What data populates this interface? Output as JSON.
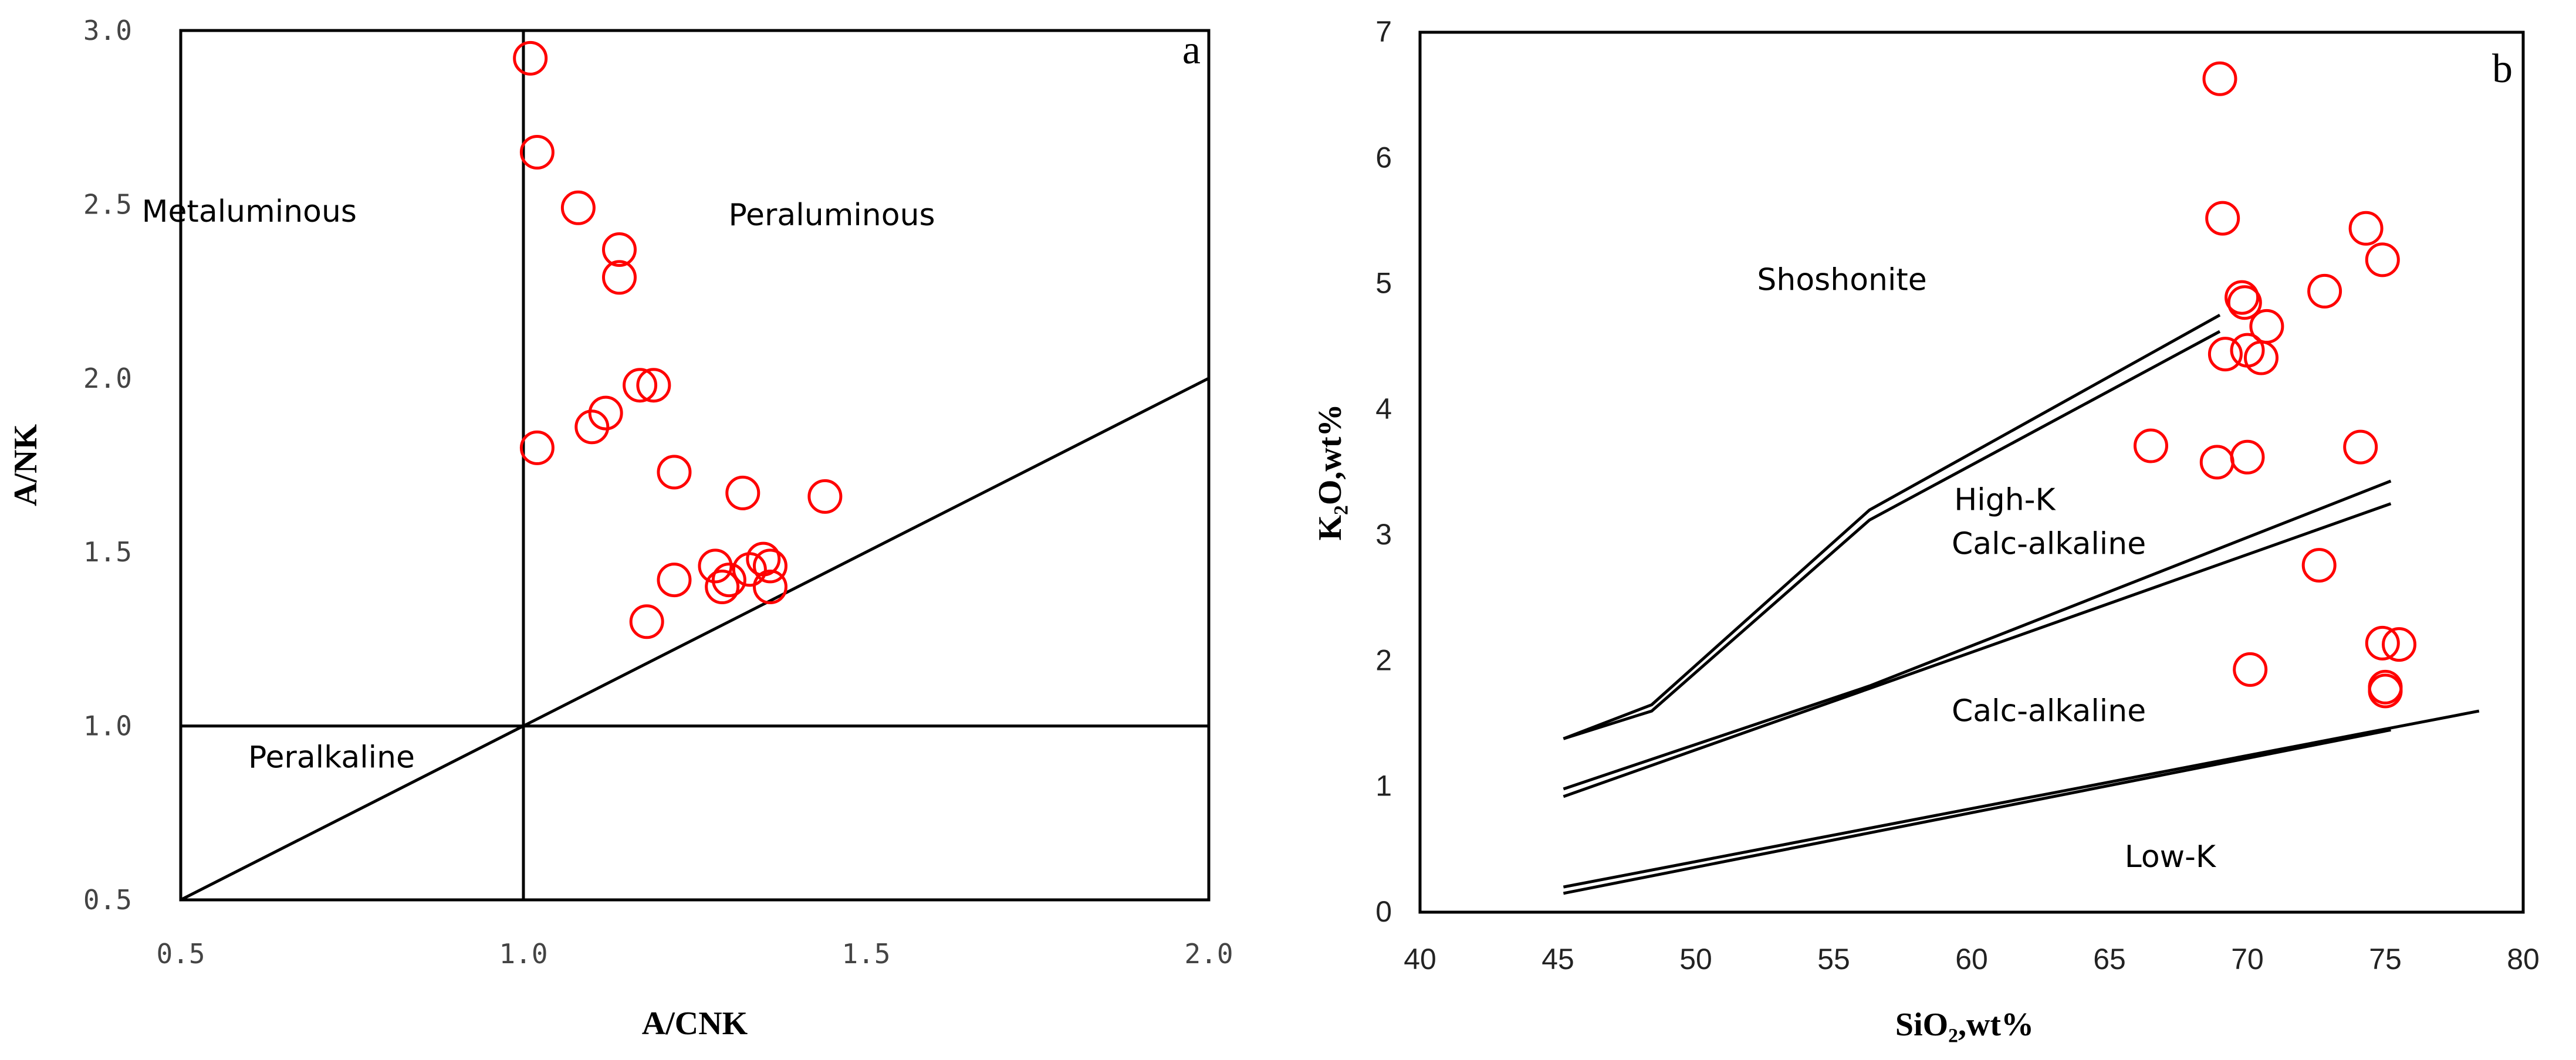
{
  "chart_data": [
    {
      "type": "scatter",
      "panel_label": "a",
      "xlabel": "A/CNK",
      "ylabel": "A/NK",
      "xlim": [
        0.5,
        2.0
      ],
      "ylim": [
        0.5,
        3.0
      ],
      "x_ticks": [
        "0.5",
        "1.0",
        "1.5",
        "2.0"
      ],
      "y_ticks": [
        "0.5",
        "1.0",
        "1.5",
        "2.0",
        "2.5",
        "3.0"
      ],
      "marker": {
        "shape": "open-circle",
        "color": "#ff0000"
      },
      "regions": [
        {
          "label": "Metaluminous",
          "x": 0.6,
          "y": 2.45
        },
        {
          "label": "Peraluminous",
          "x": 1.45,
          "y": 2.44
        },
        {
          "label": "Peralkaline",
          "x": 0.72,
          "y": 0.88
        }
      ],
      "reference_lines": [
        {
          "name": "A/CNK=1",
          "x": [
            1.0,
            1.0
          ],
          "y": [
            0.5,
            3.0
          ]
        },
        {
          "name": "A/NK=1",
          "x": [
            0.5,
            2.0
          ],
          "y": [
            1.0,
            1.0
          ]
        },
        {
          "name": "A/NK=A/CNK",
          "x": [
            0.5,
            2.0
          ],
          "y": [
            0.5,
            2.0
          ]
        }
      ],
      "points": [
        {
          "x": 1.01,
          "y": 2.92
        },
        {
          "x": 1.02,
          "y": 2.65
        },
        {
          "x": 1.08,
          "y": 2.49
        },
        {
          "x": 1.14,
          "y": 2.37
        },
        {
          "x": 1.14,
          "y": 2.29
        },
        {
          "x": 1.17,
          "y": 1.98
        },
        {
          "x": 1.19,
          "y": 1.98
        },
        {
          "x": 1.12,
          "y": 1.9
        },
        {
          "x": 1.1,
          "y": 1.86
        },
        {
          "x": 1.02,
          "y": 1.8
        },
        {
          "x": 1.22,
          "y": 1.73
        },
        {
          "x": 1.32,
          "y": 1.67
        },
        {
          "x": 1.44,
          "y": 1.66
        },
        {
          "x": 1.28,
          "y": 1.46
        },
        {
          "x": 1.33,
          "y": 1.45
        },
        {
          "x": 1.35,
          "y": 1.48
        },
        {
          "x": 1.36,
          "y": 1.46
        },
        {
          "x": 1.3,
          "y": 1.42
        },
        {
          "x": 1.29,
          "y": 1.4
        },
        {
          "x": 1.36,
          "y": 1.4
        },
        {
          "x": 1.22,
          "y": 1.42
        },
        {
          "x": 1.18,
          "y": 1.3
        }
      ]
    },
    {
      "type": "scatter",
      "panel_label": "b",
      "xlabel": "SiO₂,wt%",
      "ylabel": "K₂O,wt%",
      "xlim": [
        40,
        80
      ],
      "ylim": [
        0,
        7
      ],
      "x_ticks": [
        "40",
        "45",
        "50",
        "55",
        "60",
        "65",
        "70",
        "75",
        "80"
      ],
      "y_ticks": [
        "0",
        "1",
        "2",
        "3",
        "4",
        "5",
        "6",
        "7"
      ],
      "marker": {
        "shape": "open-circle",
        "color": "#ff0000"
      },
      "regions": [
        {
          "label": "Shoshonite",
          "x": 55.3,
          "y": 4.95
        },
        {
          "label": "High-K",
          "x": 61.2,
          "y": 3.2
        },
        {
          "label": "Calc-alkaline",
          "x": 62.8,
          "y": 2.85
        },
        {
          "label": "Calc-alkaline",
          "x": 62.8,
          "y": 1.52
        },
        {
          "label": "Low-K",
          "x": 67.2,
          "y": 0.36
        }
      ],
      "reference_lines": [
        {
          "name": "shoshonite-boundary-1",
          "x": [
            45.2,
            48.4,
            56.3,
            69.0
          ],
          "y": [
            1.38,
            1.65,
            3.2,
            4.75
          ]
        },
        {
          "name": "shoshonite-boundary-2",
          "x": [
            45.2,
            48.4,
            56.3,
            69.0
          ],
          "y": [
            1.38,
            1.6,
            3.12,
            4.62
          ]
        },
        {
          "name": "high-k-boundary-1",
          "x": [
            45.2,
            56.3,
            75.2
          ],
          "y": [
            0.98,
            1.8,
            3.43
          ]
        },
        {
          "name": "high-k-boundary-2",
          "x": [
            45.2,
            56.3,
            75.2
          ],
          "y": [
            0.92,
            1.78,
            3.25
          ]
        },
        {
          "name": "low-k-boundary-1",
          "x": [
            45.2,
            78.4
          ],
          "y": [
            0.2,
            1.6
          ]
        },
        {
          "name": "low-k-boundary-2",
          "x": [
            45.2,
            75.2
          ],
          "y": [
            0.15,
            1.45
          ]
        }
      ],
      "points": [
        {
          "x": 69.0,
          "y": 6.63
        },
        {
          "x": 69.1,
          "y": 5.52
        },
        {
          "x": 74.3,
          "y": 5.44
        },
        {
          "x": 74.9,
          "y": 5.19
        },
        {
          "x": 69.8,
          "y": 4.89
        },
        {
          "x": 69.9,
          "y": 4.85
        },
        {
          "x": 72.8,
          "y": 4.94
        },
        {
          "x": 70.7,
          "y": 4.66
        },
        {
          "x": 70.0,
          "y": 4.47
        },
        {
          "x": 69.2,
          "y": 4.44
        },
        {
          "x": 70.5,
          "y": 4.41
        },
        {
          "x": 66.5,
          "y": 3.71
        },
        {
          "x": 68.9,
          "y": 3.58
        },
        {
          "x": 70.0,
          "y": 3.62
        },
        {
          "x": 74.1,
          "y": 3.7
        },
        {
          "x": 72.6,
          "y": 2.76
        },
        {
          "x": 74.9,
          "y": 2.14
        },
        {
          "x": 75.5,
          "y": 2.13
        },
        {
          "x": 75.0,
          "y": 1.79
        },
        {
          "x": 75.0,
          "y": 1.76
        },
        {
          "x": 70.1,
          "y": 1.93
        }
      ]
    }
  ]
}
